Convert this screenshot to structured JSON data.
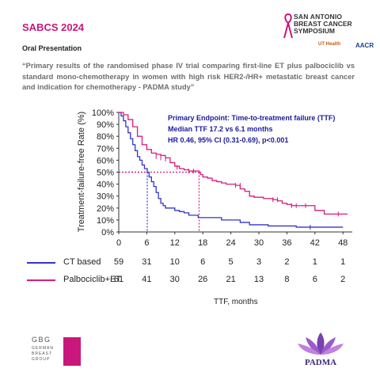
{
  "header": {
    "conference": "SABCS 2024",
    "session": "Oral Presentation",
    "quote": "“Primary results of the randomised phase IV trial comparing first-line ET plus palbociclib vs standard mono-chemotherapy in women with high risk HER2-/HR+ metastatic breast cancer and indication for chemotherapy - PADMA study”"
  },
  "logos": {
    "sabcs_line1": "SAN ANTONIO",
    "sabcs_line2": "BREAST CANCER",
    "sabcs_line3": "SYMPOSIUM",
    "ut": "UT Health",
    "aacr": "AACR",
    "gbg": "GBG",
    "gbg_line2": "GERMAN",
    "gbg_line3": "BREAST",
    "gbg_line4": "GROUP",
    "padma": "PADMA"
  },
  "colors": {
    "ct": "#3333cc",
    "palbo": "#d81b7f",
    "brand": "#c8187d"
  },
  "chart_data": {
    "type": "line",
    "ylabel": "Treatment-failure-free Rate (%)",
    "xlabel": "TTF, months",
    "x_ticks": [
      0,
      6,
      12,
      18,
      24,
      30,
      36,
      42,
      48
    ],
    "y_ticks": [
      "0%",
      "10%",
      "20%",
      "30%",
      "40%",
      "50%",
      "60%",
      "70%",
      "80%",
      "90%",
      "100%"
    ],
    "xlim": [
      0,
      50
    ],
    "ylim": [
      0,
      100
    ],
    "annotation": {
      "line1": "Primary Endpoint: Time-to-treatment failure (TTF)",
      "line2": "Median TTF 17.2 vs 6.1 months",
      "line3": "HR 0.46, 95% CI (0.31-0.69), p<0.001"
    },
    "medians": [
      6.1,
      17.2
    ],
    "series": [
      {
        "name": "CT based",
        "points": [
          [
            0,
            100
          ],
          [
            0.5,
            97
          ],
          [
            1,
            93
          ],
          [
            1.5,
            88
          ],
          [
            2,
            83
          ],
          [
            2.5,
            78
          ],
          [
            3,
            73
          ],
          [
            3.5,
            68
          ],
          [
            4,
            63
          ],
          [
            4.5,
            60
          ],
          [
            5,
            56
          ],
          [
            5.5,
            53
          ],
          [
            6.1,
            50
          ],
          [
            6.5,
            46
          ],
          [
            7,
            42
          ],
          [
            7.5,
            38
          ],
          [
            8,
            33
          ],
          [
            8.5,
            28
          ],
          [
            9,
            24
          ],
          [
            9.5,
            22
          ],
          [
            10,
            20
          ],
          [
            11,
            20
          ],
          [
            12,
            18
          ],
          [
            13,
            17
          ],
          [
            14,
            16
          ],
          [
            15,
            14
          ],
          [
            16,
            14
          ],
          [
            17,
            12
          ],
          [
            18,
            12
          ],
          [
            20,
            12
          ],
          [
            22,
            10
          ],
          [
            24,
            10
          ],
          [
            26,
            8
          ],
          [
            28,
            6
          ],
          [
            30,
            6
          ],
          [
            32,
            5
          ],
          [
            36,
            5
          ],
          [
            38,
            4
          ],
          [
            48,
            4
          ]
        ],
        "censor_marks": [
          [
            41,
            4
          ]
        ],
        "at_risk": [
          "59",
          "31",
          "10",
          "6",
          "5",
          "3",
          "2",
          "1",
          "1"
        ]
      },
      {
        "name": "Palbociclib+ET",
        "points": [
          [
            0,
            100
          ],
          [
            1,
            98
          ],
          [
            2,
            94
          ],
          [
            3,
            88
          ],
          [
            4,
            80
          ],
          [
            5,
            73
          ],
          [
            6,
            69
          ],
          [
            7,
            66
          ],
          [
            8,
            65
          ],
          [
            9,
            64
          ],
          [
            10,
            62
          ],
          [
            11,
            58
          ],
          [
            12,
            55
          ],
          [
            13,
            53
          ],
          [
            14,
            52
          ],
          [
            15,
            51
          ],
          [
            16,
            51
          ],
          [
            17.2,
            50
          ],
          [
            17.5,
            48
          ],
          [
            18,
            46
          ],
          [
            19,
            45
          ],
          [
            20,
            43
          ],
          [
            21,
            42
          ],
          [
            22,
            41
          ],
          [
            23,
            40
          ],
          [
            24,
            40
          ],
          [
            25,
            39
          ],
          [
            26,
            36
          ],
          [
            27,
            34
          ],
          [
            28,
            30
          ],
          [
            29,
            29
          ],
          [
            30,
            29
          ],
          [
            31,
            28
          ],
          [
            33,
            27
          ],
          [
            34,
            26
          ],
          [
            35,
            24
          ],
          [
            36,
            23
          ],
          [
            37,
            22
          ],
          [
            38,
            22
          ],
          [
            40,
            22
          ],
          [
            41,
            22
          ],
          [
            42,
            18
          ],
          [
            44,
            15
          ],
          [
            46,
            15
          ],
          [
            48,
            15
          ],
          [
            49,
            15
          ]
        ],
        "censor_marks": [
          [
            8,
            63
          ],
          [
            9,
            62
          ],
          [
            10,
            61
          ],
          [
            12.5,
            54
          ],
          [
            15,
            51
          ],
          [
            16,
            51
          ],
          [
            25,
            39
          ],
          [
            26,
            39
          ],
          [
            33,
            27
          ],
          [
            34,
            27
          ],
          [
            37,
            22
          ],
          [
            38,
            22
          ],
          [
            40,
            22
          ],
          [
            47,
            15
          ]
        ],
        "at_risk": [
          "61",
          "41",
          "30",
          "26",
          "21",
          "13",
          "8",
          "6",
          "2"
        ]
      }
    ]
  }
}
